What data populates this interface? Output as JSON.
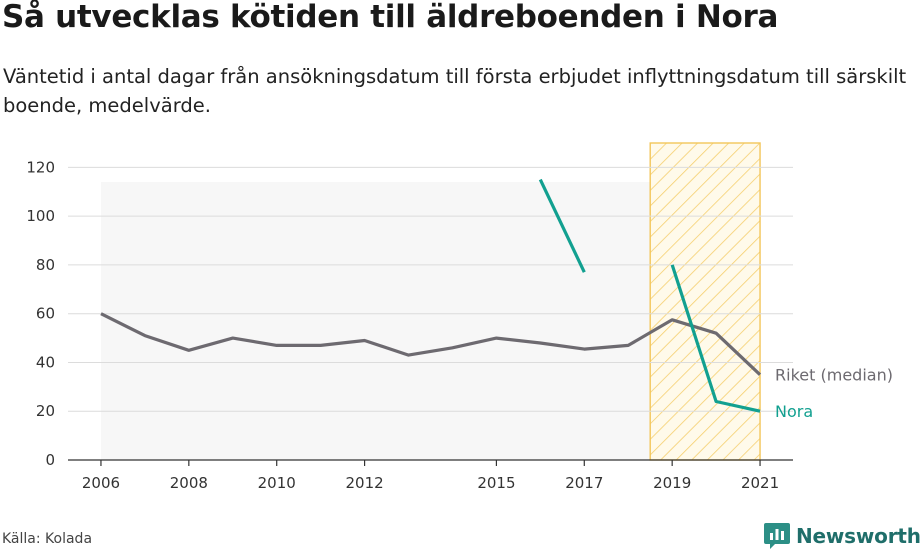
{
  "title": "Så utvecklas kötiden till äldreboenden i Nora",
  "subtitle": "Väntetid i antal dagar från ansökningsdatum till första erbjudet inflyttningsdatum till särskilt boende, medelvärde.",
  "source": "Källa: Kolada",
  "brand": {
    "name": "Newsworthy"
  },
  "chart_data": {
    "type": "line",
    "ylim": [
      0,
      130
    ],
    "xlim": [
      2005.25,
      2021.75
    ],
    "yticks": [
      0,
      20,
      40,
      60,
      80,
      100,
      120
    ],
    "xticks": [
      {
        "value": 2006,
        "label": "2006"
      },
      {
        "value": 2008,
        "label": "2008"
      },
      {
        "value": 2010,
        "label": "2010"
      },
      {
        "value": 2012,
        "label": "2012"
      },
      {
        "value": 2015,
        "label": "2015"
      },
      {
        "value": 2017,
        "label": "2017"
      },
      {
        "value": 2019,
        "label": "2019"
      },
      {
        "value": 2021,
        "label": "2021"
      }
    ],
    "grid": true,
    "band": {
      "ylow": 0,
      "yhigh": 114,
      "x_from": 2006,
      "x_to": 2021
    },
    "highlight_years": [
      2018.5,
      2021
    ],
    "series": [
      {
        "name": "Riket (median)",
        "color": "#6d6a70",
        "segments": [
          [
            [
              2006,
              60
            ],
            [
              2007,
              51
            ],
            [
              2008,
              45
            ],
            [
              2009,
              50
            ],
            [
              2010,
              47
            ],
            [
              2011,
              47
            ],
            [
              2012,
              49
            ],
            [
              2013,
              43
            ],
            [
              2014,
              46
            ],
            [
              2015,
              50
            ],
            [
              2016,
              48
            ],
            [
              2017,
              45.5
            ],
            [
              2018,
              47
            ],
            [
              2019,
              57.5
            ],
            [
              2020,
              52
            ],
            [
              2021,
              35
            ]
          ]
        ]
      },
      {
        "name": "Nora",
        "color": "#12a090",
        "segments": [
          [
            [
              2016,
              115
            ],
            [
              2017,
              77
            ]
          ],
          [
            [
              2019,
              80
            ],
            [
              2020,
              24
            ],
            [
              2021,
              20
            ]
          ]
        ]
      }
    ]
  }
}
